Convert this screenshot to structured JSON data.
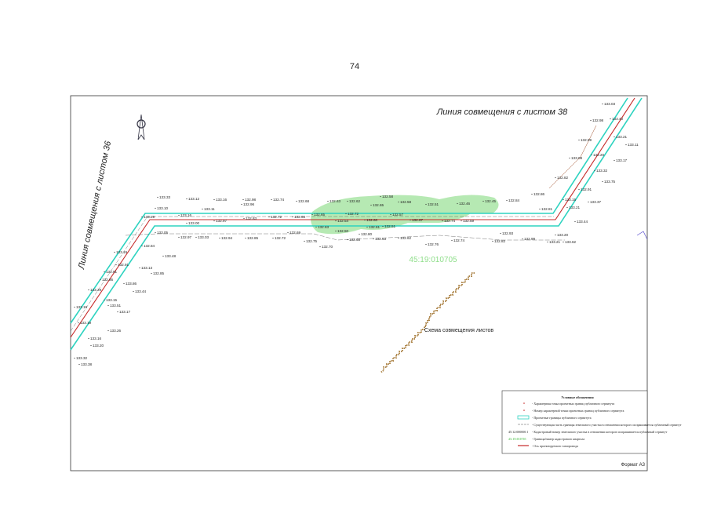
{
  "page_number": "74",
  "sheet_link_top": "Линия совмещения с листом 38",
  "sheet_link_left": "Линия совмещения с листом 36",
  "cadastral_block": "45:19:010705",
  "scheme_label": "Схема совмещения листов",
  "format": "Формат А3",
  "legend": {
    "title": "Условные обозначения",
    "items": [
      {
        "text": "- Характерная точка проектных границ публичного сервитута"
      },
      {
        "text": "- Номер характерной точки проектных границ публичного сервитута"
      },
      {
        "text": "- Проектные границы публичного сервитута"
      },
      {
        "text": "- Существующая часть границы земельного участка в отношении которого испрашивается публичный сервитут"
      },
      {
        "symbol": "45:12:000000:1",
        "text": "- Кадастровый номер земельного участка в отношении которого испрашивается публичный сервитут"
      },
      {
        "symbol": "45:19:010705",
        "text": "- Граница/номер кадастрового квартала"
      },
      {
        "text": "- Ось проектируемого газопровода"
      }
    ]
  },
  "elevations": [
    "133.33",
    "133.12",
    "133.16",
    "132.98",
    "132.96",
    "132.74",
    "132.68",
    "132.63",
    "132.62",
    "132.58",
    "132.65",
    "132.58",
    "132.51",
    "132.46",
    "132.45",
    "132.84",
    "133.10",
    "133.16",
    "133.11",
    "132.97",
    "132.83",
    "132.72",
    "132.66",
    "132.65",
    "132.72",
    "132.54",
    "132.60",
    "132.57",
    "132.67",
    "132.59",
    "132.74",
    "133.29",
    "133.00",
    "133.05",
    "132.97",
    "133.03",
    "132.94",
    "132.85",
    "132.72",
    "132.69",
    "132.63",
    "132.61",
    "132.51",
    "132.50",
    "132.80",
    "132.63",
    "132.62",
    "132.68",
    "132.70",
    "132.75",
    "132.76",
    "132.74",
    "132.82",
    "132.93",
    "132.99",
    "133.21",
    "133.62",
    "133.44",
    "133.20",
    "133.37",
    "133.21",
    "133.15",
    "132.81",
    "132.86",
    "132.82",
    "133.03",
    "132.98",
    "132.99",
    "133.08",
    "133.21",
    "133.11",
    "133.20",
    "133.17",
    "133.32",
    "133.75",
    "132.91",
    "133.40",
    "133.19",
    "132.84",
    "133.48",
    "132.91",
    "133.13",
    "132.81",
    "132.85",
    "133.86",
    "132.86",
    "133.44",
    "133.29",
    "133.15",
    "133.51",
    "133.19",
    "133.17",
    "133.19",
    "133.26",
    "133.16",
    "133.20",
    "133.32",
    "133.38"
  ]
}
